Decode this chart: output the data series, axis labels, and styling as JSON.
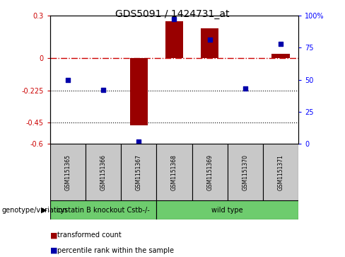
{
  "title": "GDS5091 / 1424731_at",
  "samples": [
    "GSM1151365",
    "GSM1151366",
    "GSM1151367",
    "GSM1151368",
    "GSM1151369",
    "GSM1151370",
    "GSM1151371"
  ],
  "red_values": [
    0.0,
    0.0,
    -0.47,
    0.26,
    0.21,
    0.0,
    0.03
  ],
  "blue_values": [
    50,
    42,
    2,
    97,
    81,
    43,
    78
  ],
  "ylim_left": [
    -0.6,
    0.3
  ],
  "ylim_right": [
    0,
    100
  ],
  "yticks_left": [
    0.3,
    0.0,
    -0.225,
    -0.45,
    -0.6
  ],
  "yticks_right": [
    100,
    75,
    50,
    25,
    0
  ],
  "ytick_labels_left": [
    "0.3",
    "0",
    "-0.225",
    "-0.45",
    "-0.6"
  ],
  "ytick_labels_right": [
    "100%",
    "75",
    "50",
    "25",
    "0"
  ],
  "dotted_lines": [
    -0.225,
    -0.45
  ],
  "groups": [
    {
      "label": "cystatin B knockout Cstb-/-",
      "start": 0,
      "end": 3,
      "color": "#6ECC6E"
    },
    {
      "label": "wild type",
      "start": 3,
      "end": 7,
      "color": "#6ECC6E"
    }
  ],
  "group_label": "genotype/variation",
  "legend_red": "transformed count",
  "legend_blue": "percentile rank within the sample",
  "bar_width": 0.5,
  "bar_color": "#990000",
  "dot_color": "#0000AA",
  "hline_color": "#CC0000",
  "sample_box_color": "#C8C8C8",
  "title_fontsize": 10,
  "tick_fontsize": 7,
  "sample_fontsize": 5.5,
  "legend_fontsize": 7,
  "group_fontsize": 7
}
